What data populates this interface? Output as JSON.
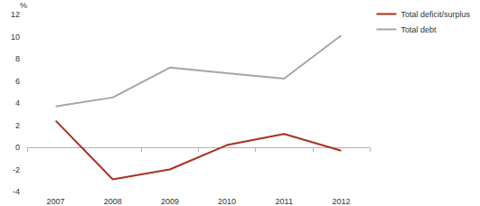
{
  "chart_data": {
    "type": "line",
    "y_label": "%",
    "categories": [
      "2007",
      "2008",
      "2009",
      "2010",
      "2011",
      "2012"
    ],
    "series": [
      {
        "name": "Total deficit/surplus",
        "color": "#a8321e",
        "values": [
          2.4,
          -2.9,
          -2.0,
          0.2,
          1.2,
          -0.3
        ]
      },
      {
        "name": "Total debt",
        "color": "#a6a6a6",
        "values": [
          3.7,
          4.5,
          7.2,
          6.7,
          6.2,
          10.1
        ]
      }
    ],
    "ylim": [
      -4,
      12
    ],
    "yticks": [
      -4,
      -2,
      0,
      2,
      4,
      6,
      8,
      10,
      12
    ],
    "grid": false,
    "legend": "right"
  }
}
